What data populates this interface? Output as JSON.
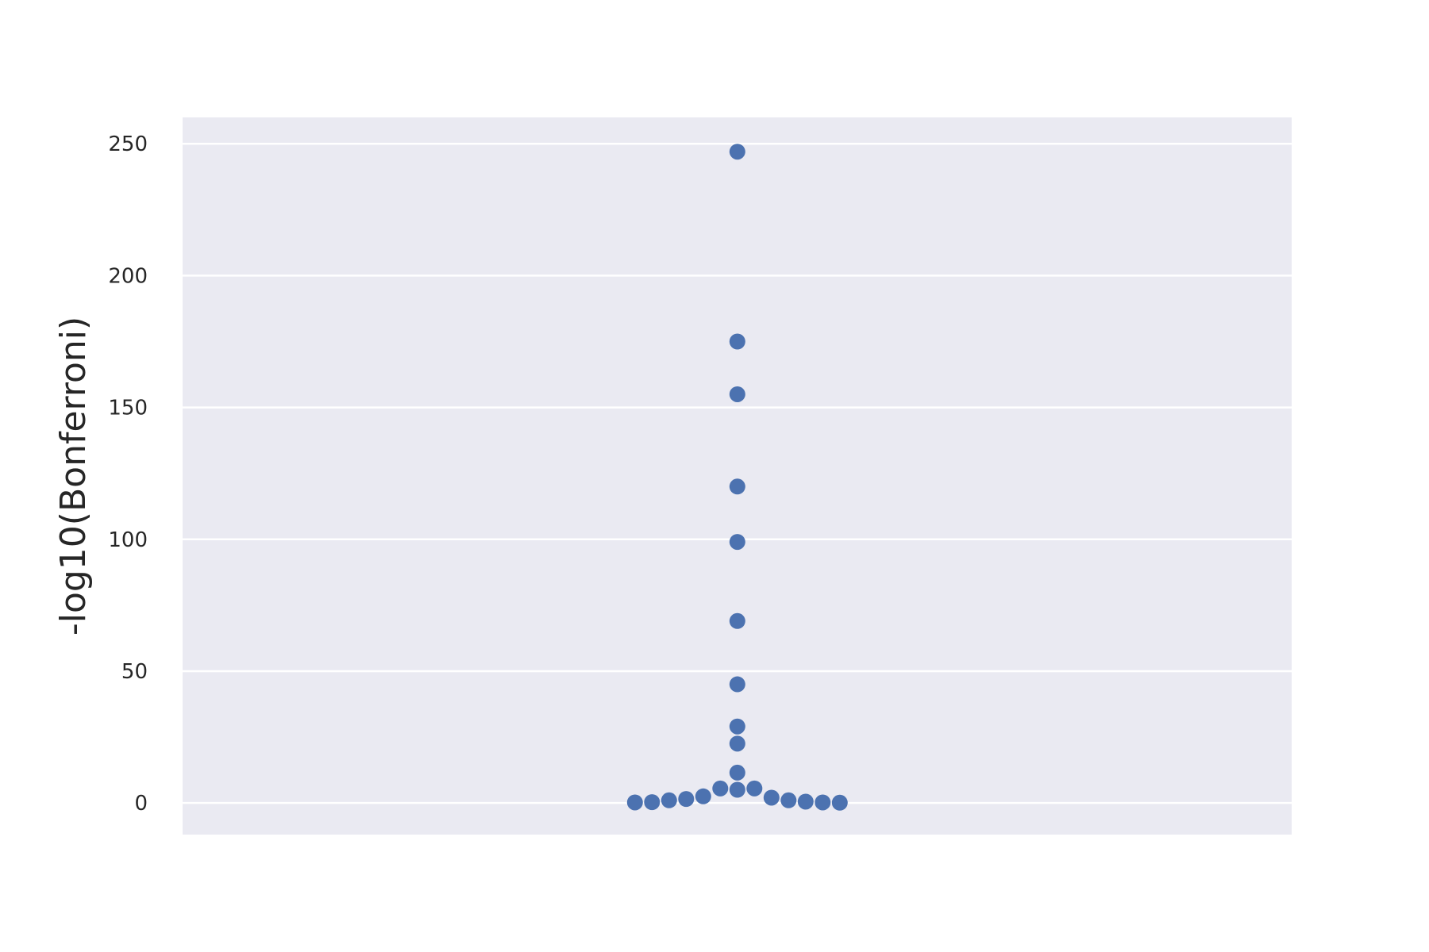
{
  "chart_data": {
    "type": "scatter",
    "subtype": "swarm",
    "title": "",
    "xlabel": "",
    "ylabel": "-log10(Bonferroni)",
    "ylim": [
      -12,
      260
    ],
    "yticks": [
      0,
      50,
      100,
      150,
      200,
      250
    ],
    "ytick_labels": [
      "0",
      "50",
      "100",
      "150",
      "200",
      "250"
    ],
    "grid": true,
    "legend": "none",
    "colors": {
      "background": "#EAEAF2",
      "point": "#4C72B0",
      "grid": "#FFFFFF",
      "text": "#262626"
    },
    "values": [
      247,
      175,
      155,
      120,
      99,
      69,
      45,
      29,
      22.5,
      11.5,
      5.5,
      5.5,
      5,
      2.5,
      2,
      1.5,
      1,
      1,
      0.5,
      0.3,
      0.2,
      0.2,
      0.1
    ]
  }
}
